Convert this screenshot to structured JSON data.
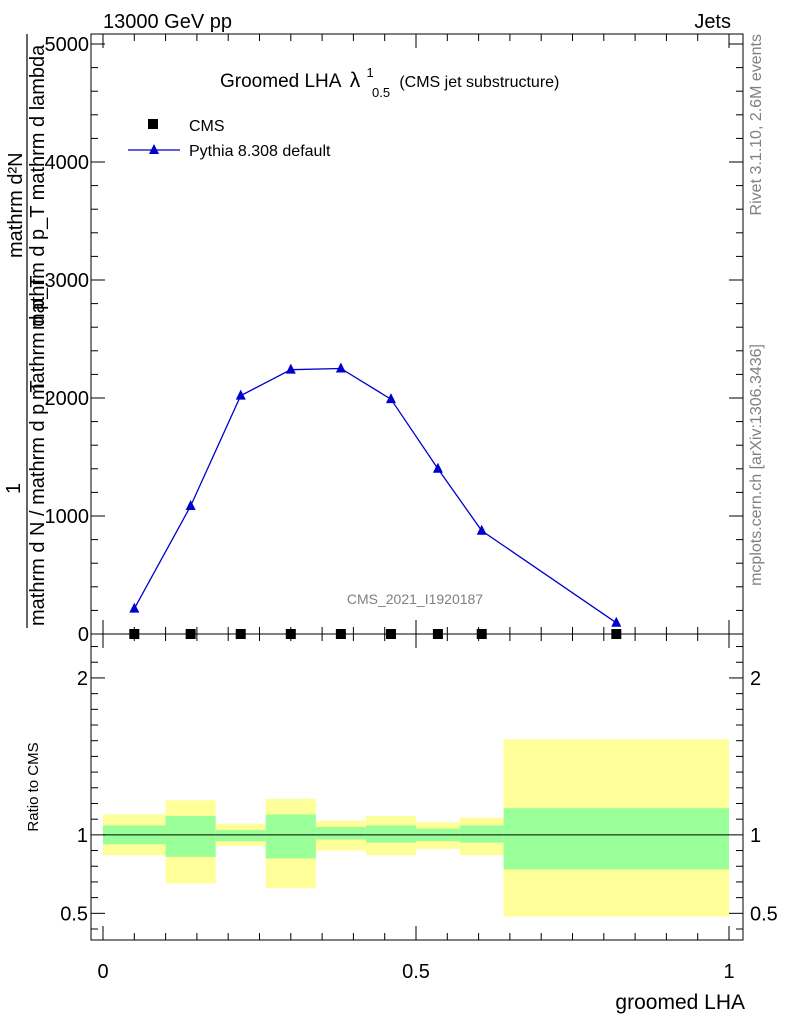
{
  "header": {
    "left": "13000 GeV pp",
    "right": "Jets"
  },
  "side_labels": {
    "rivet": "Rivet 3.1.10,  2.6M events",
    "mcplots": "mcplots.cern.ch [arXiv:1306.3436]"
  },
  "chart_data": [
    {
      "type": "line",
      "title_main": "Groomed LHA",
      "title_symbol": "λ",
      "title_sup": "1",
      "title_sub": "0.5",
      "title_tail": "(CMS jet substructure)",
      "analysis_label": "CMS_2021_I1920187",
      "ylabel": {
        "numerator": "mathrm d²N",
        "frac_one": "1",
        "denominator": "mathrm d N / mathrm d p_T",
        "overlay_a": "mathrm d p_T mathrm d lambda",
        "overlay_b": "mathrm d p_T"
      },
      "xlim": [
        0,
        1
      ],
      "ylim": [
        0,
        5000
      ],
      "yticks": [
        {
          "v": 0,
          "label": "0"
        },
        {
          "v": 1000,
          "label": "1000"
        },
        {
          "v": 2000,
          "label": "2000"
        },
        {
          "v": 3000,
          "label": "3000"
        },
        {
          "v": 4000,
          "label": "4000"
        },
        {
          "v": 5000,
          "label": "5000"
        }
      ],
      "legend": [
        {
          "name": "CMS",
          "marker": "square"
        },
        {
          "name": "Pythia 8.308 default",
          "marker": "triangle"
        }
      ],
      "series": [
        {
          "name": "CMS",
          "color": "#000000",
          "x": [
            0.05,
            0.14,
            0.22,
            0.3,
            0.38,
            0.46,
            0.535,
            0.605,
            0.82
          ],
          "y": [
            0,
            0,
            0,
            0,
            0,
            0,
            0,
            0,
            0
          ]
        },
        {
          "name": "Pythia 8.308 default",
          "color": "#0000cc",
          "x": [
            0.05,
            0.14,
            0.22,
            0.3,
            0.38,
            0.46,
            0.535,
            0.605,
            0.82
          ],
          "y": [
            215,
            1085,
            2020,
            2240,
            2250,
            1990,
            1400,
            875,
            95
          ]
        }
      ]
    },
    {
      "type": "area",
      "ylabel": "Ratio to CMS",
      "xlabel": "groomed LHA",
      "xlim": [
        0,
        1
      ],
      "ylim": [
        0.33,
        2.28
      ],
      "xticks": [
        {
          "v": 0,
          "label": "0"
        },
        {
          "v": 0.5,
          "label": "0.5"
        },
        {
          "v": 1,
          "label": "1"
        }
      ],
      "yticks": [
        {
          "v": 0.5,
          "label": "0.5"
        },
        {
          "v": 1,
          "label": "1"
        },
        {
          "v": 2,
          "label": "2"
        }
      ],
      "reference": 1,
      "bands": [
        {
          "x0": 0.0,
          "x1": 0.1,
          "inner": [
            0.94,
            1.06
          ],
          "outer": [
            0.87,
            1.13
          ]
        },
        {
          "x0": 0.1,
          "x1": 0.18,
          "inner": [
            0.86,
            1.12
          ],
          "outer": [
            0.69,
            1.22
          ]
        },
        {
          "x0": 0.18,
          "x1": 0.26,
          "inner": [
            0.96,
            1.03
          ],
          "outer": [
            0.93,
            1.07
          ]
        },
        {
          "x0": 0.26,
          "x1": 0.34,
          "inner": [
            0.85,
            1.13
          ],
          "outer": [
            0.66,
            1.23
          ]
        },
        {
          "x0": 0.34,
          "x1": 0.42,
          "inner": [
            0.97,
            1.05
          ],
          "outer": [
            0.9,
            1.09
          ]
        },
        {
          "x0": 0.42,
          "x1": 0.5,
          "inner": [
            0.95,
            1.06
          ],
          "outer": [
            0.87,
            1.12
          ]
        },
        {
          "x0": 0.5,
          "x1": 0.57,
          "inner": [
            0.96,
            1.04
          ],
          "outer": [
            0.91,
            1.08
          ]
        },
        {
          "x0": 0.57,
          "x1": 0.64,
          "inner": [
            0.95,
            1.06
          ],
          "outer": [
            0.87,
            1.11
          ]
        },
        {
          "x0": 0.64,
          "x1": 1.0,
          "inner": [
            0.78,
            1.17
          ],
          "outer": [
            0.48,
            1.61
          ]
        }
      ],
      "band_colors": {
        "inner": "#99ff99",
        "outer": "#ffff99"
      }
    }
  ]
}
